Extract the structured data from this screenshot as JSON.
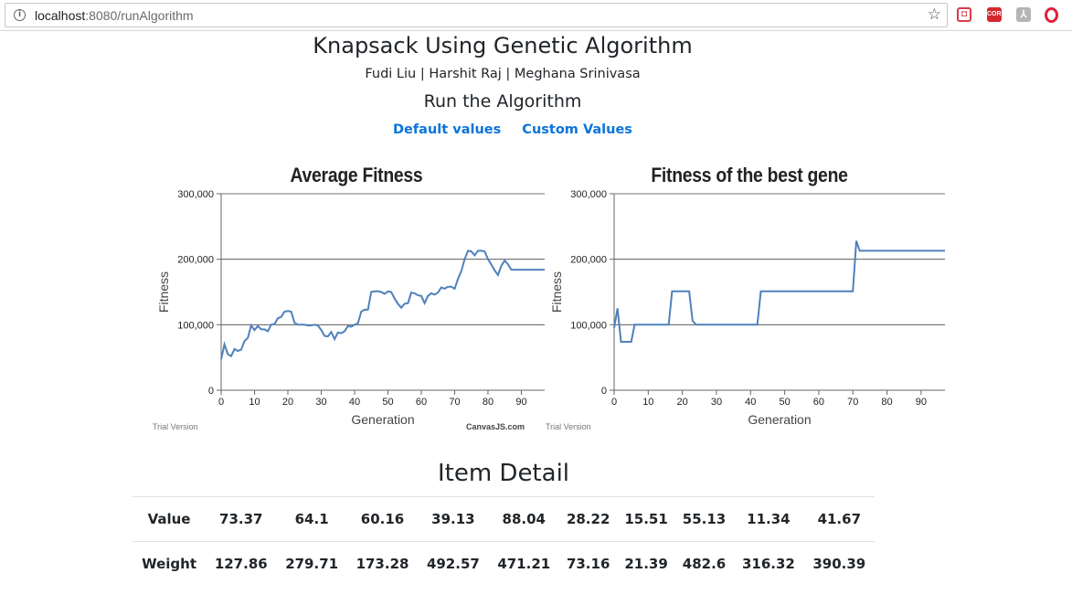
{
  "browser": {
    "url_host": "localhost",
    "url_rest": ":8080/runAlgorithm",
    "star_icon": "bookmark-star-icon",
    "extensions": [
      {
        "name": "pocket-icon",
        "label": "",
        "color": "#d93b4c"
      },
      {
        "name": "cors-icon",
        "label": "CORS",
        "color": "#d4272e"
      },
      {
        "name": "pdf-icon",
        "label": "",
        "color": "#b5b5b5"
      },
      {
        "name": "opera-icon",
        "label": "",
        "color": "#e0203a"
      }
    ]
  },
  "page": {
    "title": "Knapsack Using Genetic Algorithm",
    "authors": "Fudi Liu | Harshit Raj | Meghana Srinivasa",
    "run_heading": "Run the Algorithm",
    "link_default": "Default values",
    "link_custom": "Custom Values"
  },
  "chart_data": [
    {
      "type": "line",
      "title": "Average Fitness",
      "xlabel": "Generation",
      "ylabel": "Fitness",
      "xlim": [
        0,
        97
      ],
      "ylim": [
        0,
        300000
      ],
      "yticks": [
        "0",
        "100,000",
        "200,000",
        "300,000"
      ],
      "xticks": [
        "0",
        "10",
        "20",
        "30",
        "40",
        "50",
        "60",
        "70",
        "80",
        "90"
      ],
      "grid": true,
      "watermark_left": "Trial Version",
      "watermark_right": "CanvasJS.com",
      "color": "#4f81bc",
      "x": [
        0,
        1,
        2,
        3,
        4,
        5,
        6,
        7,
        8,
        9,
        10,
        11,
        12,
        13,
        14,
        15,
        16,
        17,
        18,
        19,
        20,
        21,
        22,
        23,
        24,
        25,
        26,
        27,
        28,
        29,
        30,
        31,
        32,
        33,
        34,
        35,
        36,
        37,
        38,
        39,
        40,
        41,
        42,
        43,
        44,
        45,
        46,
        47,
        48,
        49,
        50,
        51,
        52,
        53,
        54,
        55,
        56,
        57,
        58,
        59,
        60,
        61,
        62,
        63,
        64,
        65,
        66,
        67,
        68,
        69,
        70,
        71,
        72,
        73,
        74,
        75,
        76,
        77,
        78,
        79,
        80,
        81,
        82,
        83,
        84,
        85,
        86,
        87,
        88,
        89,
        90,
        91,
        92,
        93,
        94,
        95,
        96,
        97
      ],
      "y": [
        47000,
        70000,
        55000,
        52000,
        63000,
        60000,
        62000,
        75000,
        80000,
        99000,
        92000,
        98000,
        93000,
        93000,
        90000,
        100000,
        101000,
        110000,
        112000,
        120000,
        121000,
        120000,
        103000,
        100000,
        100000,
        100000,
        99000,
        99000,
        100000,
        99000,
        92000,
        83000,
        82000,
        89000,
        78000,
        88000,
        87000,
        90000,
        98000,
        97000,
        100000,
        102000,
        120000,
        123000,
        123000,
        150000,
        151000,
        151000,
        150000,
        147000,
        151000,
        150000,
        140000,
        132000,
        126000,
        132000,
        133000,
        149000,
        148000,
        145000,
        144000,
        133000,
        144000,
        148000,
        146000,
        149000,
        157000,
        155000,
        158000,
        158000,
        155000,
        170000,
        182000,
        200000,
        213000,
        212000,
        206000,
        213000,
        213000,
        212000,
        200000,
        192000,
        183000,
        176000,
        190000,
        198000,
        192000,
        184000,
        184000,
        184000,
        184000,
        184000,
        184000,
        184000,
        184000,
        184000,
        184000,
        184000
      ]
    },
    {
      "type": "line",
      "title": "Fitness of the best gene",
      "xlabel": "Generation",
      "ylabel": "Fitness",
      "xlim": [
        0,
        97
      ],
      "ylim": [
        0,
        300000
      ],
      "yticks": [
        "0",
        "100,000",
        "200,000",
        "300,000"
      ],
      "xticks": [
        "0",
        "10",
        "20",
        "30",
        "40",
        "50",
        "60",
        "70",
        "80",
        "90"
      ],
      "grid": true,
      "watermark_left": "Trial Version",
      "color": "#4f81bc",
      "x": [
        0,
        1,
        2,
        3,
        4,
        5,
        6,
        7,
        8,
        9,
        10,
        11,
        12,
        13,
        14,
        15,
        16,
        17,
        18,
        19,
        20,
        21,
        22,
        23,
        24,
        25,
        26,
        27,
        28,
        29,
        30,
        31,
        32,
        33,
        34,
        35,
        36,
        37,
        38,
        39,
        40,
        41,
        42,
        43,
        44,
        45,
        46,
        47,
        48,
        49,
        50,
        51,
        52,
        53,
        54,
        55,
        56,
        57,
        58,
        59,
        60,
        61,
        62,
        63,
        64,
        65,
        66,
        67,
        68,
        69,
        70,
        71,
        72,
        73,
        74,
        75,
        76,
        77,
        78,
        79,
        80,
        81,
        82,
        83,
        84,
        85,
        86,
        87,
        88,
        89,
        90,
        91,
        92,
        93,
        94,
        95,
        96,
        97
      ],
      "y": [
        95000,
        125000,
        74000,
        74000,
        74000,
        74000,
        100000,
        100000,
        100000,
        100000,
        100000,
        100000,
        100000,
        100000,
        100000,
        100000,
        100000,
        151000,
        151000,
        151000,
        151000,
        151000,
        151000,
        106000,
        100000,
        100000,
        100000,
        100000,
        100000,
        100000,
        100000,
        100000,
        100000,
        100000,
        100000,
        100000,
        100000,
        100000,
        100000,
        100000,
        100000,
        100000,
        100000,
        151000,
        151000,
        151000,
        151000,
        151000,
        151000,
        151000,
        151000,
        151000,
        151000,
        151000,
        151000,
        151000,
        151000,
        151000,
        151000,
        151000,
        151000,
        151000,
        151000,
        151000,
        151000,
        151000,
        151000,
        151000,
        151000,
        151000,
        151000,
        228000,
        213000,
        213000,
        213000,
        213000,
        213000,
        213000,
        213000,
        213000,
        213000,
        213000,
        213000,
        213000,
        213000,
        213000,
        213000,
        213000,
        213000,
        213000,
        213000,
        213000,
        213000,
        213000,
        213000,
        213000,
        213000,
        213000
      ]
    }
  ],
  "items": {
    "title": "Item Detail",
    "value_label": "Value",
    "weight_label": "Weight",
    "values": [
      "73.37",
      "64.1",
      "60.16",
      "39.13",
      "88.04",
      "28.22",
      "15.51",
      "55.13",
      "11.34",
      "41.67"
    ],
    "weights": [
      "127.86",
      "279.71",
      "173.28",
      "492.57",
      "471.21",
      "73.16",
      "21.39",
      "482.6",
      "316.32",
      "390.39"
    ]
  }
}
